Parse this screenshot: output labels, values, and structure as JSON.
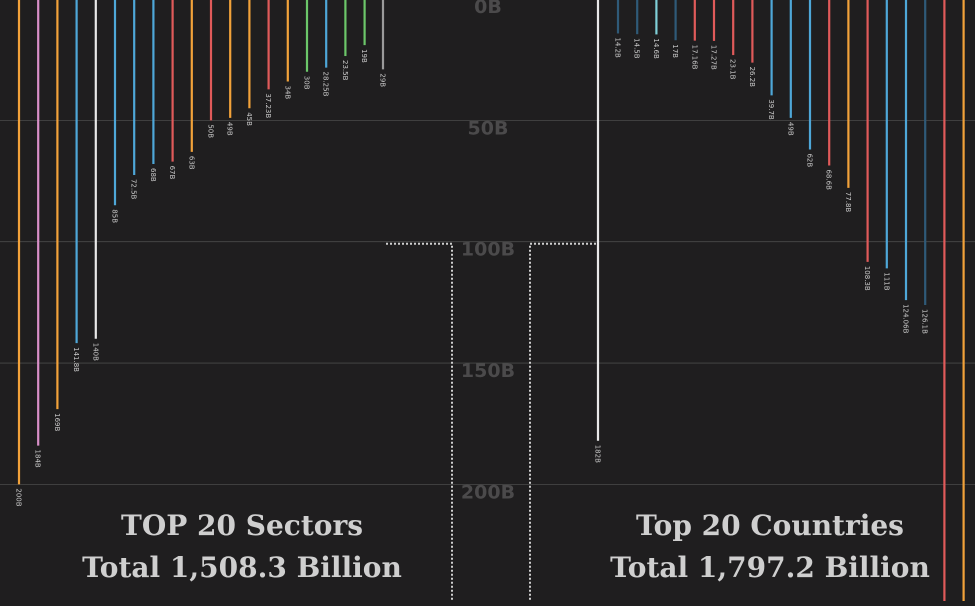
{
  "axis": {
    "tick_labels": [
      "0B",
      "50B",
      "100B",
      "150B",
      "200B"
    ],
    "ticks": [
      0,
      50,
      100,
      150,
      200
    ]
  },
  "left_panel": {
    "title": "TOP 20 Sectors",
    "total": "Total 1,508.3 Billion"
  },
  "right_panel": {
    "title": "Top 20 Countries",
    "total": "Total 1,797.2 Billion"
  },
  "chart_data": [
    {
      "type": "bar",
      "orientation": "vertical-hanging",
      "ylim": [
        0,
        250
      ],
      "values": [
        200,
        184,
        169,
        141.8,
        140,
        85,
        72.5,
        68,
        67,
        63,
        50,
        49,
        45,
        37.23,
        34,
        30,
        28.25,
        23.5,
        19,
        29
      ],
      "labels": [
        "200B",
        "184B",
        "169B",
        "141.8B",
        "140B",
        "85B",
        "72.5B",
        "68B",
        "67B",
        "63B",
        "50B",
        "49B",
        "45B",
        "37.23B",
        "34B",
        "30B",
        "28.25B",
        "23.5B",
        "19B",
        "29B"
      ],
      "colors": [
        "#f2a23a",
        "#d98fc8",
        "#f2a23a",
        "#4ea7d8",
        "#e8e8e8",
        "#4ea7d8",
        "#4ea7d8",
        "#4ea7d8",
        "#e05a5a",
        "#f2a23a",
        "#e05a5a",
        "#f2a23a",
        "#f2a23a",
        "#e05a5a",
        "#f2a23a",
        "#6cc76a",
        "#4ea7d8",
        "#6cc76a",
        "#6cc76a",
        "#9a9a9a"
      ]
    },
    {
      "type": "bar",
      "orientation": "vertical-hanging",
      "ylim": [
        0,
        250
      ],
      "values": [
        182,
        14.2,
        14.5,
        14.6,
        17,
        17.16,
        17.27,
        23.1,
        26.2,
        39.7,
        49,
        62,
        68.6,
        77.8,
        108.3,
        111,
        124.06,
        126.1,
        250,
        250
      ],
      "labels": [
        "182B",
        "14.2B",
        "14.5B",
        "14.6B",
        "17B",
        "17.16B",
        "17.27B",
        "23.1B",
        "26.2B",
        "39.7B",
        "49B",
        "62B",
        "68.6B",
        "77.8B",
        "108.3B",
        "111B",
        "124.06B",
        "126.1B",
        "",
        ""
      ],
      "colors": [
        "#e8e8e8",
        "#2f5a78",
        "#2f5a78",
        "#7fd0d8",
        "#2f5a78",
        "#e05a5a",
        "#e05a5a",
        "#e05a5a",
        "#e05a5a",
        "#4ea7d8",
        "#4ea7d8",
        "#4ea7d8",
        "#e05a5a",
        "#f2a23a",
        "#e05a5a",
        "#4ea7d8",
        "#4ea7d8",
        "#2f5a78",
        "#e05a5a",
        "#f2a23a"
      ]
    }
  ],
  "colors": {
    "background": "#1f1e1f",
    "gridline": "#4a4a4a",
    "axis_text": "#4b4a4b",
    "dotted_line": "#cfcfcf"
  }
}
